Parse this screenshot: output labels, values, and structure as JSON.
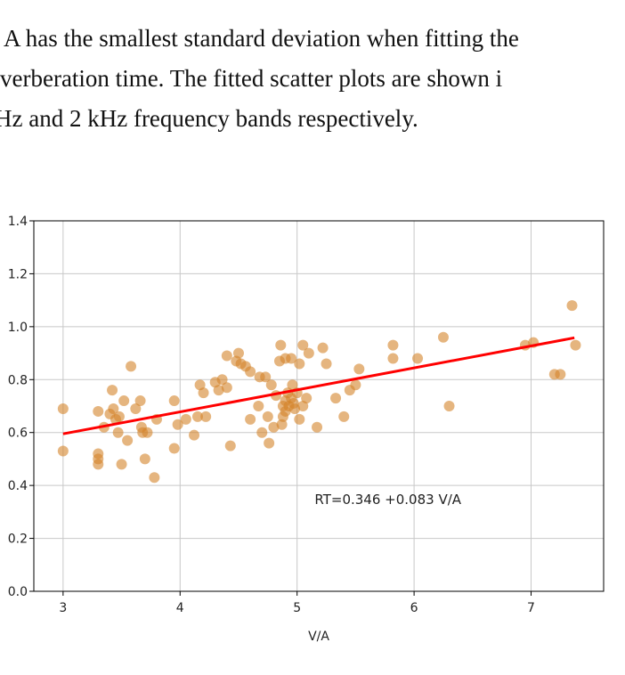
{
  "paragraph": {
    "lines": [
      "A has the smallest standard deviation when fitting the",
      "verberation time.  The fitted scatter plots are shown i",
      "Hz and 2 kHz frequency bands respectively."
    ]
  },
  "chart_data": {
    "type": "scatter",
    "xlabel": "V/A",
    "xlim": [
      2.75,
      7.62
    ],
    "ylim": [
      0,
      1.4
    ],
    "xticks": [
      3,
      4,
      5,
      6,
      7
    ],
    "yticks": [
      {
        "value": 0,
        "label": "0.0"
      },
      {
        "value": 0.2,
        "label": "0.2"
      },
      {
        "value": 0.4,
        "label": "0.4"
      },
      {
        "value": 0.6,
        "label": "0.6"
      },
      {
        "value": 0.8,
        "label": "0.8"
      },
      {
        "value": 1.0,
        "label": "1.0"
      },
      {
        "value": 1.2,
        "label": "1.2"
      },
      {
        "value": 1.4,
        "label": "1.4"
      }
    ],
    "grid": true,
    "series": [
      {
        "color": "#d4842a",
        "x": [
          3.0,
          3.0,
          3.3,
          3.3,
          3.3,
          3.3,
          3.35,
          3.4,
          3.42,
          3.43,
          3.45,
          3.47,
          3.48,
          3.5,
          3.52,
          3.55,
          3.58,
          3.62,
          3.66,
          3.67,
          3.68,
          3.7,
          3.72,
          3.78,
          3.8,
          3.95,
          3.95,
          3.98,
          4.05,
          4.12,
          4.15,
          4.17,
          4.2,
          4.22,
          4.3,
          4.33,
          4.36,
          4.4,
          4.4,
          4.43,
          4.48,
          4.5,
          4.52,
          4.56,
          4.6,
          4.6,
          4.67,
          4.68,
          4.7,
          4.73,
          4.75,
          4.76,
          4.78,
          4.8,
          4.82,
          4.85,
          4.86,
          4.87,
          4.88,
          4.88,
          4.9,
          4.9,
          4.9,
          4.92,
          4.93,
          4.95,
          4.95,
          4.96,
          4.97,
          4.98,
          5.0,
          5.02,
          5.02,
          5.05,
          5.05,
          5.08,
          5.1,
          5.17,
          5.22,
          5.25,
          5.33,
          5.4,
          5.45,
          5.5,
          5.53,
          5.82,
          5.82,
          6.03,
          6.25,
          6.3,
          6.95,
          7.02,
          7.2,
          7.25,
          7.35,
          7.38
        ],
        "values": [
          0.69,
          0.53,
          0.52,
          0.5,
          0.48,
          0.68,
          0.62,
          0.67,
          0.76,
          0.69,
          0.65,
          0.6,
          0.66,
          0.48,
          0.72,
          0.57,
          0.85,
          0.69,
          0.72,
          0.62,
          0.6,
          0.5,
          0.6,
          0.43,
          0.65,
          0.54,
          0.72,
          0.63,
          0.65,
          0.59,
          0.66,
          0.78,
          0.75,
          0.66,
          0.79,
          0.76,
          0.8,
          0.89,
          0.77,
          0.55,
          0.87,
          0.9,
          0.86,
          0.85,
          0.83,
          0.65,
          0.7,
          0.81,
          0.6,
          0.81,
          0.66,
          0.56,
          0.78,
          0.62,
          0.74,
          0.87,
          0.93,
          0.63,
          0.66,
          0.7,
          0.72,
          0.68,
          0.88,
          0.75,
          0.7,
          0.73,
          0.88,
          0.78,
          0.71,
          0.69,
          0.75,
          0.86,
          0.65,
          0.93,
          0.7,
          0.73,
          0.9,
          0.62,
          0.92,
          0.86,
          0.73,
          0.66,
          0.76,
          0.78,
          0.84,
          0.93,
          0.88,
          0.88,
          0.96,
          0.7,
          0.93,
          0.94,
          0.82,
          0.82,
          1.08,
          0.93
        ]
      },
      {
        "color": "#ff0000",
        "x": [
          3.0,
          7.37
        ],
        "values": [
          0.595,
          0.958
        ]
      }
    ],
    "annotation": {
      "text": "RT=0.346 +0.083 V/A",
      "x": 5.15,
      "y": 0.33
    }
  }
}
